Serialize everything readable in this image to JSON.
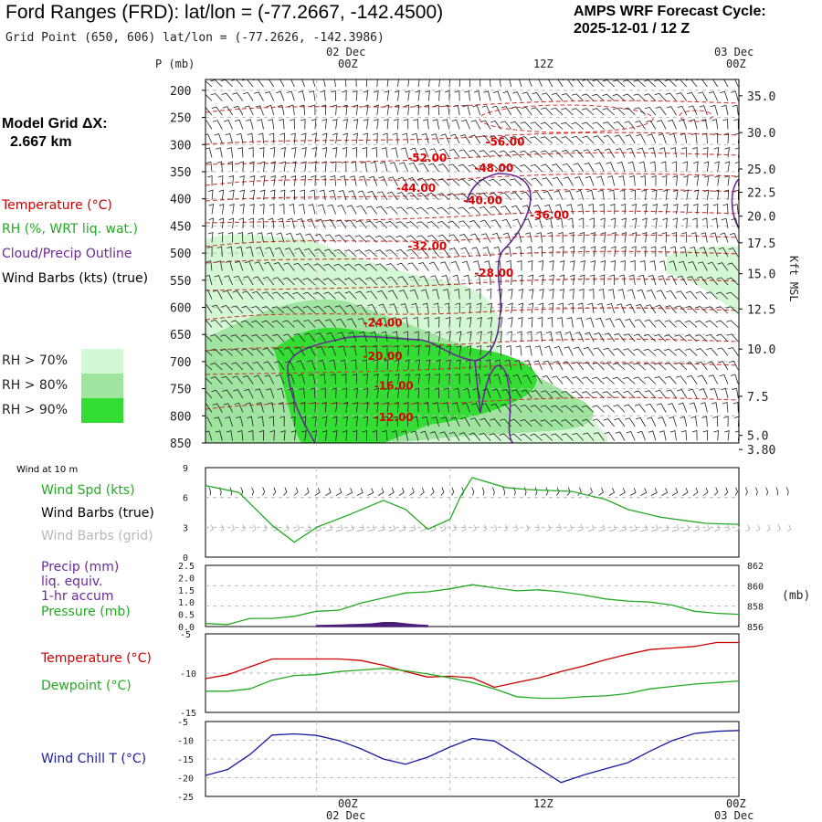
{
  "header": {
    "title": "Ford Ranges (FRD):  lat/lon = (-77.2667, -142.4500)",
    "subtitle": "Grid Point (650, 606) lat/lon = (-77.2626, -142.3986)",
    "cycle_line1": "AMPS WRF Forecast Cycle:",
    "cycle_line2": "2025-12-01 / 12  Z"
  },
  "left_panel": {
    "model_grid_label": "Model Grid ΔX:",
    "model_grid_value": "2.667 km",
    "legend": [
      {
        "text": "Temperature (°C)",
        "color": "#cc0000"
      },
      {
        "text": "RH (%, WRT liq. wat.)",
        "color": "#22aa22"
      },
      {
        "text": "Cloud/Precip Outline",
        "color": "#6a2a9a"
      },
      {
        "text": "Wind Barbs (kts) (true)",
        "color": "#000000"
      }
    ],
    "rh_legend": [
      {
        "text": "RH > 70%",
        "color": "#d4f7d4"
      },
      {
        "text": "RH > 80%",
        "color": "#9fe49f"
      },
      {
        "text": "RH > 90%",
        "color": "#33dd33"
      }
    ]
  },
  "time_axis": {
    "top_dates": [
      "02 Dec",
      "03 Dec"
    ],
    "top_ticks": [
      "00Z",
      "12Z",
      "00Z"
    ],
    "bottom_ticks": [
      "00Z",
      "12Z",
      "00Z"
    ],
    "bottom_dates": [
      "02 Dec",
      "03 Dec"
    ]
  },
  "chart_data": [
    {
      "type": "heatmap",
      "name": "vertical-cross-section",
      "x_hours": [
        -10,
        38
      ],
      "y_label": "P (mb)",
      "y_ticks": [
        200,
        250,
        300,
        350,
        400,
        450,
        500,
        550,
        600,
        650,
        700,
        750,
        800,
        850
      ],
      "ylim": [
        850,
        180
      ],
      "right_label": "Kft MSL",
      "right_ticks": [
        {
          "label": "35.0",
          "p": 210
        },
        {
          "label": "30.0",
          "p": 278
        },
        {
          "label": "25.0",
          "p": 345
        },
        {
          "label": "22.5",
          "p": 388
        },
        {
          "label": "20.0",
          "p": 432
        },
        {
          "label": "17.5",
          "p": 481
        },
        {
          "label": "15.0",
          "p": 538
        },
        {
          "label": "12.5",
          "p": 603
        },
        {
          "label": "10.0",
          "p": 677
        },
        {
          "label": "7.5",
          "p": 764
        },
        {
          "label": "5.0",
          "p": 836
        },
        {
          "label": "3.80",
          "p": 862
        }
      ],
      "temperature_labels": [
        {
          "text": "-56.00",
          "hour": 17,
          "p": 295
        },
        {
          "text": "-52.00",
          "hour": 10,
          "p": 325
        },
        {
          "text": "-48.00",
          "hour": 16,
          "p": 343
        },
        {
          "text": "-44.00",
          "hour": 9,
          "p": 380
        },
        {
          "text": "-40.00",
          "hour": 15,
          "p": 403
        },
        {
          "text": "-36.00",
          "hour": 21,
          "p": 430
        },
        {
          "text": "-32.00",
          "hour": 10,
          "p": 487
        },
        {
          "text": "-28.00",
          "hour": 16,
          "p": 537
        },
        {
          "text": "-24.00",
          "hour": 6,
          "p": 629
        },
        {
          "text": "-20.00",
          "hour": 6,
          "p": 690
        },
        {
          "text": "-16.00",
          "hour": 7,
          "p": 745
        },
        {
          "text": "-12.00",
          "hour": 7,
          "p": 803
        }
      ]
    },
    {
      "type": "line",
      "name": "wind-10m",
      "title": "Wind at 10 m",
      "ylim": [
        0,
        9
      ],
      "y_ticks": [
        "9",
        "6",
        "3",
        "0"
      ],
      "labels": [
        {
          "text": "Wind Spd (kts)",
          "color": "#22aa22"
        },
        {
          "text": "Wind Barbs (true)",
          "color": "#000000"
        },
        {
          "text": "Wind Barbs (grid)",
          "color": "#b8b8b8"
        }
      ],
      "series": [
        {
          "name": "Wind Spd (kts)",
          "color": "#22aa22",
          "x": [
            -10,
            -7,
            -4,
            -2,
            0,
            3,
            6,
            8,
            10,
            12,
            13,
            14,
            17,
            19,
            21,
            23,
            26,
            28,
            31,
            35,
            38
          ],
          "values": [
            7.2,
            6.5,
            3.2,
            1.5,
            3.0,
            4.3,
            5.7,
            4.8,
            2.8,
            3.8,
            6.2,
            8.0,
            7.0,
            6.8,
            6.7,
            6.6,
            5.8,
            4.8,
            4.0,
            3.4,
            3.3
          ]
        }
      ]
    },
    {
      "type": "line",
      "name": "precip-pressure",
      "ylim_left": [
        0,
        2.5
      ],
      "ylim_right": [
        856,
        862
      ],
      "y_ticks_left": [
        "2.5",
        "2.0",
        "1.5",
        "1.0",
        "0.5",
        "0.0"
      ],
      "y_ticks_right": [
        "862",
        "860",
        "858",
        "856"
      ],
      "right_unit": "(mb)",
      "labels": [
        {
          "text": "Precip (mm)",
          "color": "#6a2a9a"
        },
        {
          "text": "liq. equiv.",
          "color": "#6a2a9a"
        },
        {
          "text": "1-hr accum",
          "color": "#6a2a9a"
        },
        {
          "text": "Pressure (mb)",
          "color": "#22aa22"
        }
      ],
      "series": [
        {
          "name": "Pressure (mb)",
          "color": "#22aa22",
          "x": [
            -10,
            -8,
            -6,
            -4,
            -2,
            0,
            2,
            4,
            6,
            8,
            10,
            12,
            14,
            16,
            18,
            20,
            22,
            24,
            26,
            28,
            30,
            32,
            34,
            36,
            38
          ],
          "values": [
            856.3,
            856.2,
            856.8,
            856.8,
            857.0,
            857.5,
            857.6,
            858.3,
            858.8,
            859.3,
            859.4,
            859.7,
            860.1,
            859.8,
            859.5,
            859.6,
            859.4,
            859.1,
            858.7,
            858.5,
            858.4,
            858.1,
            857.5,
            857.3,
            857.2
          ]
        },
        {
          "name": "Precip (mm)",
          "color": "#4b1d7a",
          "x": [
            0,
            2,
            4,
            5,
            6,
            7,
            8,
            9,
            10
          ],
          "values": [
            0,
            0.02,
            0.05,
            0.07,
            0.12,
            0.12,
            0.07,
            0.03,
            0
          ]
        }
      ]
    },
    {
      "type": "line",
      "name": "temperature-dewpoint",
      "ylim": [
        -15,
        -5
      ],
      "y_ticks": [
        "-5",
        "-10",
        "-15"
      ],
      "labels": [
        {
          "text": "Temperature (°C)",
          "color": "#cc0000"
        },
        {
          "text": "Dewpoint (°C)",
          "color": "#22aa22"
        }
      ],
      "series": [
        {
          "name": "Temperature (°C)",
          "color": "#cc0000",
          "x": [
            -10,
            -8,
            -6,
            -4,
            -2,
            0,
            2,
            4,
            6,
            8,
            10,
            12,
            14,
            16,
            18,
            20,
            22,
            24,
            26,
            28,
            30,
            32,
            34,
            36,
            38
          ],
          "values": [
            -10.7,
            -10.2,
            -9.2,
            -8.2,
            -8.2,
            -8.2,
            -8.2,
            -8.4,
            -9.0,
            -9.8,
            -10.5,
            -10.4,
            -10.6,
            -11.8,
            -11.2,
            -10.6,
            -9.8,
            -9.1,
            -8.3,
            -7.6,
            -7.0,
            -6.8,
            -6.6,
            -6.1,
            -6.1
          ]
        },
        {
          "name": "Dewpoint (°C)",
          "color": "#22aa22",
          "x": [
            -10,
            -8,
            -6,
            -4,
            -2,
            0,
            2,
            4,
            6,
            8,
            10,
            12,
            14,
            16,
            18,
            20,
            22,
            24,
            26,
            28,
            30,
            32,
            34,
            36,
            38
          ],
          "values": [
            -12.3,
            -12.3,
            -12.0,
            -10.9,
            -10.3,
            -10.2,
            -9.8,
            -9.6,
            -9.4,
            -9.7,
            -10.1,
            -10.6,
            -11.2,
            -12.0,
            -13.0,
            -13.2,
            -13.2,
            -13.0,
            -12.9,
            -12.6,
            -12.0,
            -11.7,
            -11.4,
            -11.2,
            -11.0
          ]
        }
      ]
    },
    {
      "type": "line",
      "name": "wind-chill",
      "ylim": [
        -25,
        -5
      ],
      "y_ticks": [
        "-5",
        "-10",
        "-15",
        "-20",
        "-25"
      ],
      "labels": [
        {
          "text": "Wind Chill T (°C)",
          "color": "#1a1aa0"
        }
      ],
      "series": [
        {
          "name": "Wind Chill T (°C)",
          "color": "#1a1aa0",
          "x": [
            -10,
            -8,
            -6,
            -4,
            -2,
            0,
            2,
            4,
            6,
            8,
            10,
            12,
            14,
            16,
            18,
            20,
            22,
            24,
            26,
            28,
            30,
            32,
            34,
            36,
            38
          ],
          "values": [
            -19.4,
            -17.8,
            -13.8,
            -8.6,
            -8.3,
            -8.7,
            -10.1,
            -12.3,
            -15.0,
            -16.4,
            -14.5,
            -11.8,
            -9.5,
            -10.2,
            -13.8,
            -17.5,
            -21.3,
            -19.3,
            -17.6,
            -16.0,
            -12.9,
            -10.1,
            -8.2,
            -7.6,
            -7.4
          ]
        }
      ]
    }
  ]
}
